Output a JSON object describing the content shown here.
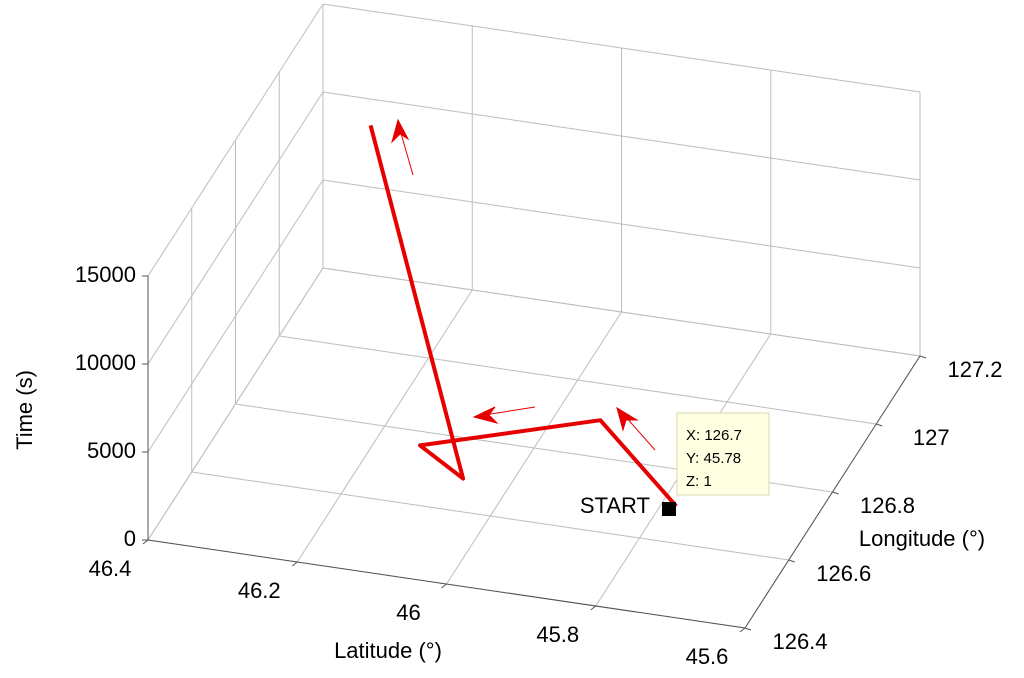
{
  "chart_data": {
    "type": "line3d",
    "xlabel": "Longitude (°)",
    "ylabel": "Latitude (°)",
    "zlabel": "Time (s)",
    "xlim": [
      126.4,
      127.2
    ],
    "xticks": [
      126.4,
      126.6,
      126.8,
      127,
      127.2
    ],
    "ylim": [
      45.6,
      46.4
    ],
    "yticks": [
      45.6,
      45.8,
      46,
      46.2,
      46.4
    ],
    "zlim": [
      0,
      15000
    ],
    "zticks": [
      0,
      5000,
      10000,
      15000
    ],
    "grid": true,
    "series": [
      {
        "color": "#e60000",
        "x": [
          126.7,
          126.83,
          126.62,
          126.51,
          126.94
        ],
        "y": [
          45.78,
          45.92,
          46.1,
          46.01,
          46.26
        ],
        "z": [
          1,
          1500,
          3000,
          3800,
          14000
        ]
      }
    ],
    "start_label": "START",
    "datatip": [
      "X: 126.7",
      "Y: 45.78",
      "Z: 1"
    ]
  }
}
